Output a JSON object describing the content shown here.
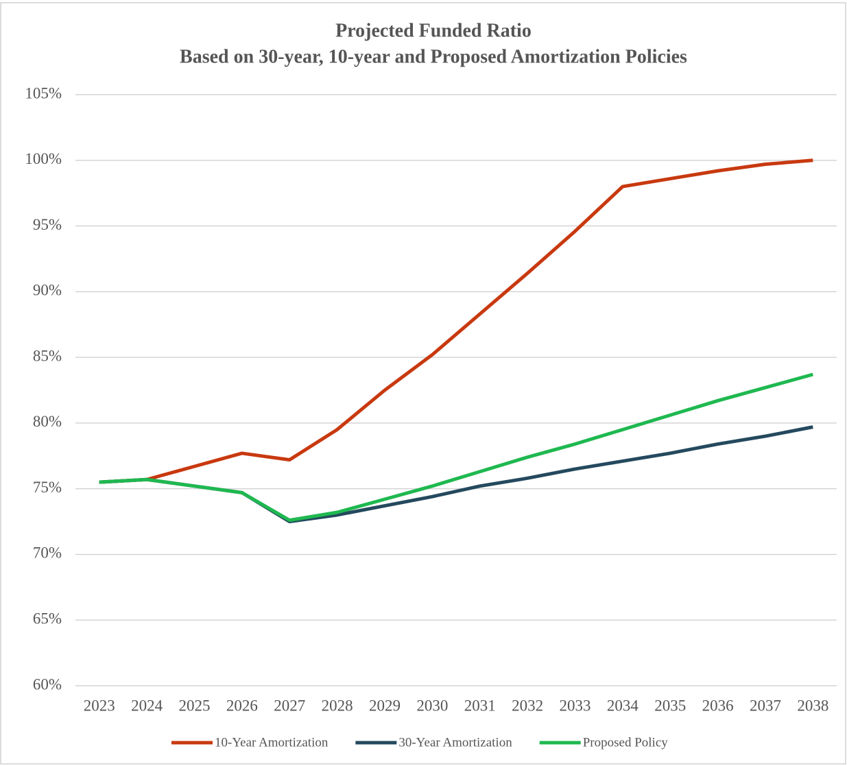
{
  "chart_data": {
    "type": "line",
    "title": "Projected Funded Ratio",
    "subtitle": "Based on 30-year, 10-year and Proposed Amortization Policies",
    "categories": [
      "2023",
      "2024",
      "2025",
      "2026",
      "2027",
      "2028",
      "2029",
      "2030",
      "2031",
      "2032",
      "2033",
      "2034",
      "2035",
      "2036",
      "2037",
      "2038"
    ],
    "series": [
      {
        "name": "10-Year Amortization",
        "color": "#c8390f",
        "values": [
          75.5,
          75.7,
          76.7,
          77.7,
          77.2,
          79.5,
          82.5,
          85.2,
          88.3,
          91.4,
          94.6,
          98.0,
          98.6,
          99.2,
          99.7,
          100.0
        ]
      },
      {
        "name": "30-Year Amortization",
        "color": "#24495e",
        "values": [
          75.5,
          75.7,
          75.2,
          74.7,
          72.5,
          73.0,
          73.7,
          74.4,
          75.2,
          75.8,
          76.5,
          77.1,
          77.7,
          78.4,
          79.0,
          79.7
        ]
      },
      {
        "name": "Proposed Policy",
        "color": "#1fb850",
        "values": [
          75.5,
          75.7,
          75.2,
          74.7,
          72.6,
          73.2,
          74.2,
          75.2,
          76.3,
          77.4,
          78.4,
          79.5,
          80.6,
          81.7,
          82.7,
          83.7
        ]
      }
    ],
    "ylim": [
      60,
      105
    ],
    "yticks": [
      {
        "value": 60,
        "label": "60%"
      },
      {
        "value": 65,
        "label": "65%"
      },
      {
        "value": 70,
        "label": "70%"
      },
      {
        "value": 75,
        "label": "75%"
      },
      {
        "value": 80,
        "label": "80%"
      },
      {
        "value": 85,
        "label": "85%"
      },
      {
        "value": 90,
        "label": "90%"
      },
      {
        "value": 95,
        "label": "95%"
      },
      {
        "value": 100,
        "label": "100%"
      },
      {
        "value": 105,
        "label": "105%"
      }
    ],
    "grid": true,
    "legend": "bottom"
  }
}
